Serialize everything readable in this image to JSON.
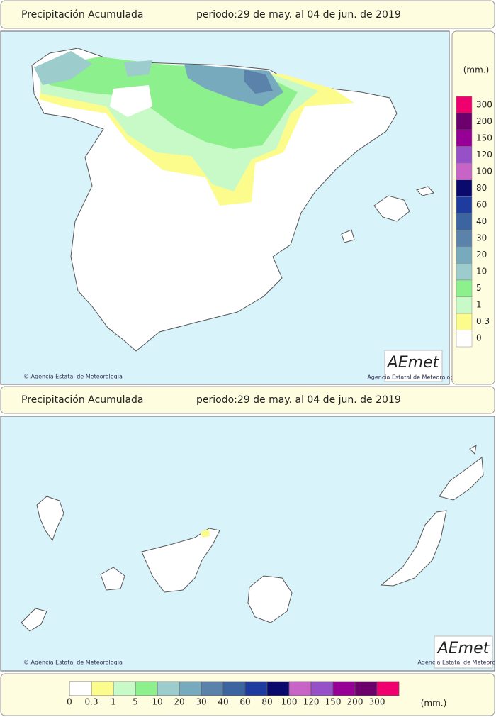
{
  "header": {
    "title": "Precipitación Acumulada",
    "period": "periodo:29 de may. al 04 de jun. de 2019"
  },
  "peninsula_map": {
    "credit": "© Agencia Estatal de Meteorología",
    "logo": "AEmet",
    "logo_caption": "Agencia Estatal de Meteorología"
  },
  "legend": {
    "unit": "(mm.)",
    "classes": [
      {
        "label": "0",
        "color": "#ffffff"
      },
      {
        "label": "0.3",
        "color": "#fcfc8c"
      },
      {
        "label": "1",
        "color": "#c8fac8"
      },
      {
        "label": "5",
        "color": "#8cf08c"
      },
      {
        "label": "10",
        "color": "#9ccccc"
      },
      {
        "label": "20",
        "color": "#78aabe"
      },
      {
        "label": "30",
        "color": "#5a82aa"
      },
      {
        "label": "40",
        "color": "#3c64a0"
      },
      {
        "label": "60",
        "color": "#1e3ca0"
      },
      {
        "label": "80",
        "color": "#0a0a6e"
      },
      {
        "label": "100",
        "color": "#c864c8"
      },
      {
        "label": "120",
        "color": "#9650c8"
      },
      {
        "label": "150",
        "color": "#960096"
      },
      {
        "label": "200",
        "color": "#6e006e"
      },
      {
        "label": "300",
        "color": "#f0006e"
      }
    ]
  },
  "header2": {
    "title": "Precipitación Acumulada",
    "period": "periodo:29 de may. al 04 de jun. de 2019"
  },
  "canary_map": {
    "credit": "© Agencia Estatal de Meteorología",
    "logo": "AEmet",
    "logo_caption": "Agencia Estatal de Meteorología"
  },
  "bottom_legend": {
    "unit": "(mm.)"
  }
}
